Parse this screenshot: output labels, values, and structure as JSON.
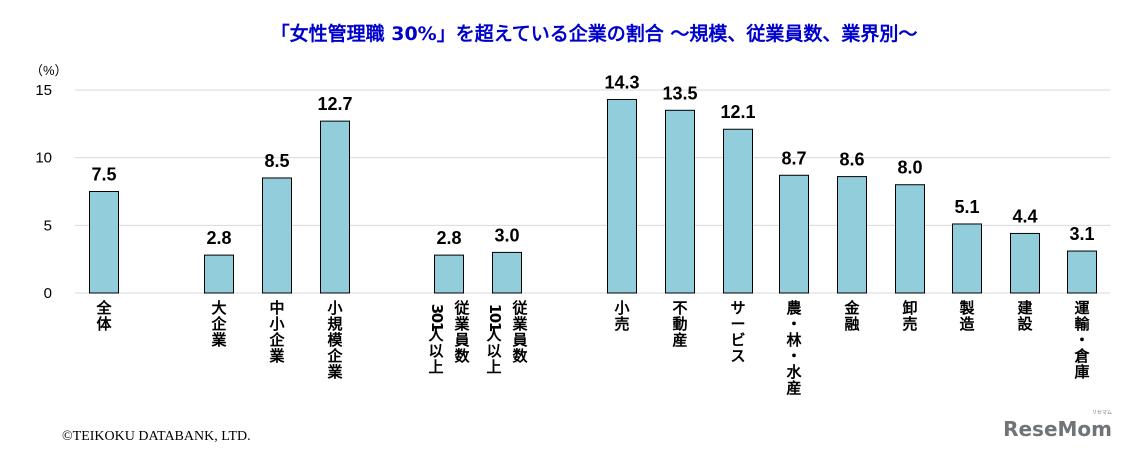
{
  "chart_data": {
    "type": "bar",
    "title": "「女性管理職 30%」を超えている企業の割合 ～規模、従業員数、業界別～",
    "unit_label": "（%）",
    "ylim": [
      0,
      15
    ],
    "y_ticks": [
      "0",
      "5",
      "10",
      "15"
    ],
    "grid": true,
    "bar_color": "#92cddc",
    "title_color": "#0000cc",
    "categories": [
      {
        "label": "全体",
        "lines": [
          "全体"
        ],
        "value": 7.5,
        "display": "7.5"
      },
      {
        "label": "大企業",
        "lines": [
          "大企業"
        ],
        "value": 2.8,
        "display": "2.8"
      },
      {
        "label": "中小企業",
        "lines": [
          "中小企業"
        ],
        "value": 8.5,
        "display": "8.5"
      },
      {
        "label": "小規模企業",
        "lines": [
          "小規模企業"
        ],
        "value": 12.7,
        "display": "12.7"
      },
      {
        "label": "従業員数 301人以上",
        "lines": [
          "従業員数",
          "301人以上"
        ],
        "value": 2.8,
        "display": "2.8"
      },
      {
        "label": "従業員数 101人以上",
        "lines": [
          "従業員数",
          "101人以上"
        ],
        "value": 3.0,
        "display": "3.0"
      },
      {
        "label": "小売",
        "lines": [
          "小売"
        ],
        "value": 14.3,
        "display": "14.3"
      },
      {
        "label": "不動産",
        "lines": [
          "不動産"
        ],
        "value": 13.5,
        "display": "13.5"
      },
      {
        "label": "サービス",
        "lines": [
          "サービス"
        ],
        "value": 12.1,
        "display": "12.1"
      },
      {
        "label": "農・林・水産",
        "lines": [
          "農・林・水産"
        ],
        "value": 8.7,
        "display": "8.7"
      },
      {
        "label": "金融",
        "lines": [
          "金融"
        ],
        "value": 8.6,
        "display": "8.6"
      },
      {
        "label": "卸売",
        "lines": [
          "卸売"
        ],
        "value": 8.0,
        "display": "8.0"
      },
      {
        "label": "製造",
        "lines": [
          "製造"
        ],
        "value": 5.1,
        "display": "5.1"
      },
      {
        "label": "建設",
        "lines": [
          "建設"
        ],
        "value": 4.4,
        "display": "4.4"
      },
      {
        "label": "運輸・倉庫",
        "lines": [
          "運輸・倉庫"
        ],
        "value": 3.1,
        "display": "3.1"
      }
    ]
  },
  "footer": {
    "copyright": "©TEIKOKU DATABANK, LTD.",
    "logo": "ReseMom",
    "logo_small": "リセマム"
  }
}
